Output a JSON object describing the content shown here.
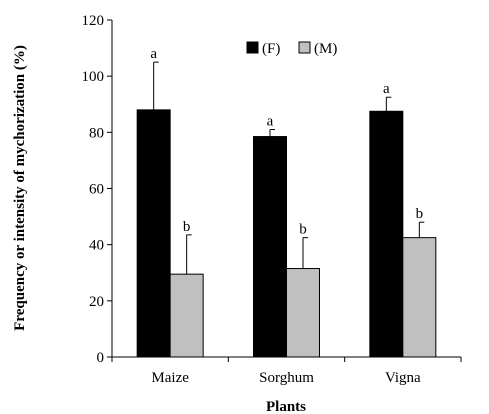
{
  "chart_data": {
    "type": "bar",
    "title": "",
    "xlabel": "Plants",
    "ylabel": "Frequency or intensity of mychorization (%)",
    "categories": [
      "Maize",
      "Sorghum",
      "Vigna"
    ],
    "ylim": [
      0,
      120
    ],
    "yticks": [
      0,
      20,
      40,
      60,
      80,
      100,
      120
    ],
    "ytick_labels": [
      "0",
      "20",
      "40",
      "60",
      "80",
      "100",
      "120"
    ],
    "grid": false,
    "legend_position": "top-center",
    "series": [
      {
        "name": "(F)",
        "color": "#000000",
        "values": [
          88,
          78.5,
          87.5
        ],
        "errors": [
          17,
          2.5,
          5
        ],
        "significance": [
          "a",
          "a",
          "a"
        ]
      },
      {
        "name": "(M)",
        "color": "#c0c0c0",
        "values": [
          29.5,
          31.5,
          42.5
        ],
        "errors": [
          14,
          11,
          5.5
        ],
        "significance": [
          "b",
          "b",
          "b"
        ]
      }
    ]
  }
}
